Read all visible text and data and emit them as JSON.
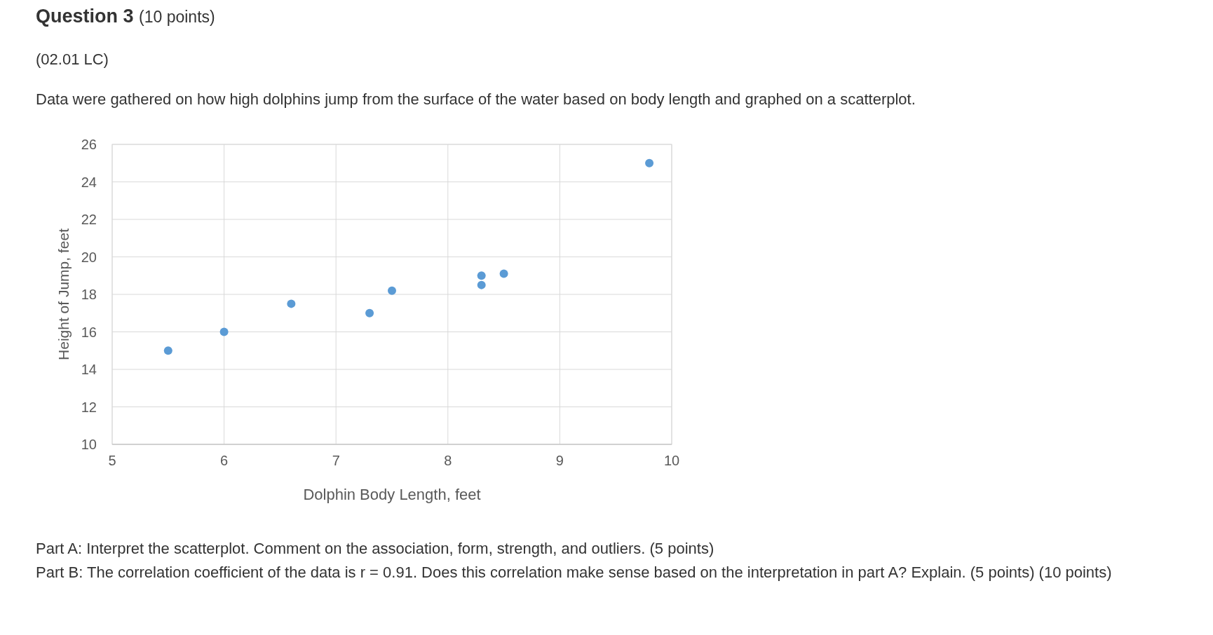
{
  "chart_data": {
    "type": "scatter",
    "title": "Question 3",
    "subtitle": "(10 points)",
    "xlabel": "Dolphin Body Length, feet",
    "ylabel": "Height of Jump, feet",
    "annotations": [
      "(02.01 LC)",
      "Data were gathered on how high dolphins jump from the surface of the water based on body length and graphed on a scatterplot.",
      "Part A: Interpret the scatterplot. Comment on the association, form, strength, and outliers. (5 points)",
      "Part B: The correlation coefficient of the data is r = 0.91. Does this correlation make sense based on the interpretation in part A? Explain. (5 points) (10 points)"
    ],
    "x": [
      5.5,
      6,
      6.6,
      7.3,
      7.5,
      8.3,
      8.3,
      8.5,
      9.8
    ],
    "series": [
      {
        "color": "#5b9bd5",
        "values": [
          15,
          16,
          17.5,
          17,
          18.2,
          19,
          18.5,
          19.1,
          25
        ]
      }
    ],
    "xlim": [
      5,
      10
    ],
    "xticks": [
      5,
      6,
      7,
      8,
      9,
      10
    ],
    "ylim": [
      10,
      26
    ],
    "yticks": [
      10,
      12,
      14,
      16,
      18,
      20,
      22,
      24,
      26
    ],
    "grid": true,
    "marker": "circle"
  }
}
